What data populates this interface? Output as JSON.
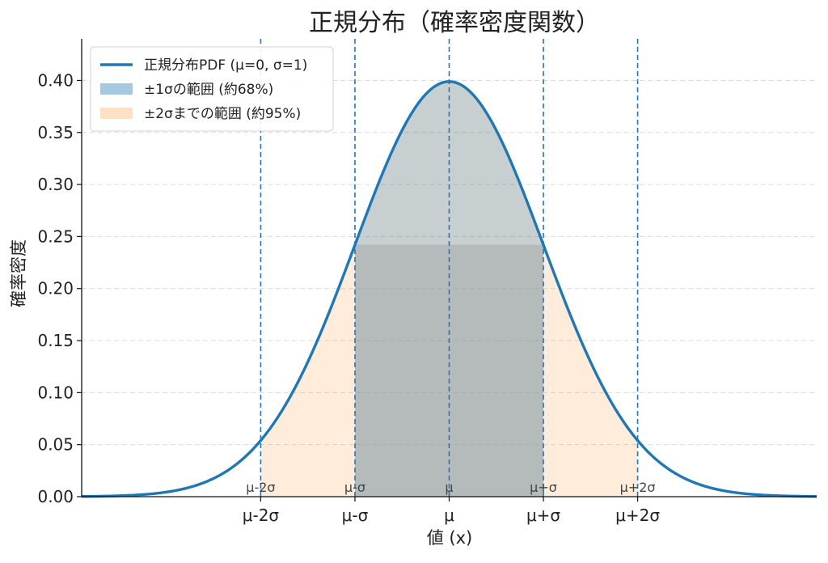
{
  "chart_data": {
    "type": "area",
    "title": "正規分布（確率密度関数）",
    "xlabel": "値 (x)",
    "ylabel": "確率密度",
    "xlim": [
      -3.9,
      3.9
    ],
    "ylim": [
      0,
      0.44
    ],
    "yticks": [
      0.0,
      0.05,
      0.1,
      0.15,
      0.2,
      0.25,
      0.3,
      0.35,
      0.4
    ],
    "ytick_labels": [
      "0.00",
      "0.05",
      "0.10",
      "0.15",
      "0.20",
      "0.25",
      "0.30",
      "0.35",
      "0.40"
    ],
    "xticks": [
      -2,
      -1,
      0,
      1,
      2
    ],
    "xtick_labels": [
      "μ-2σ",
      "μ-σ",
      "μ",
      "μ+σ",
      "μ+2σ"
    ],
    "grid": "horizontal dashed",
    "legend_position": "top-left",
    "mu": 0,
    "sigma": 1,
    "series": [
      {
        "name": "正規分布PDF (μ=0, σ=1)",
        "kind": "line",
        "color": "#1f77b4"
      },
      {
        "name": "±1σの範囲 (約68%)",
        "kind": "fill",
        "range": [
          -1,
          1
        ],
        "color": "#1f77b4",
        "opacity": 0.25
      },
      {
        "name": "±2σまでの範囲 (約95%)",
        "kind": "fill",
        "range": [
          -2,
          2
        ],
        "color": "#ff7f0e",
        "opacity": 0.15
      }
    ],
    "vertical_lines": [
      {
        "x": -2,
        "label": "μ-2σ"
      },
      {
        "x": -1,
        "label": "μ-σ"
      },
      {
        "x": 0,
        "label": "μ"
      },
      {
        "x": 1,
        "label": "μ+σ"
      },
      {
        "x": 2,
        "label": "μ+2σ"
      }
    ],
    "center_band": {
      "range": [
        -1,
        1
      ],
      "top": 0.242,
      "color": "#a0a0a0",
      "opacity": 0.45
    }
  }
}
